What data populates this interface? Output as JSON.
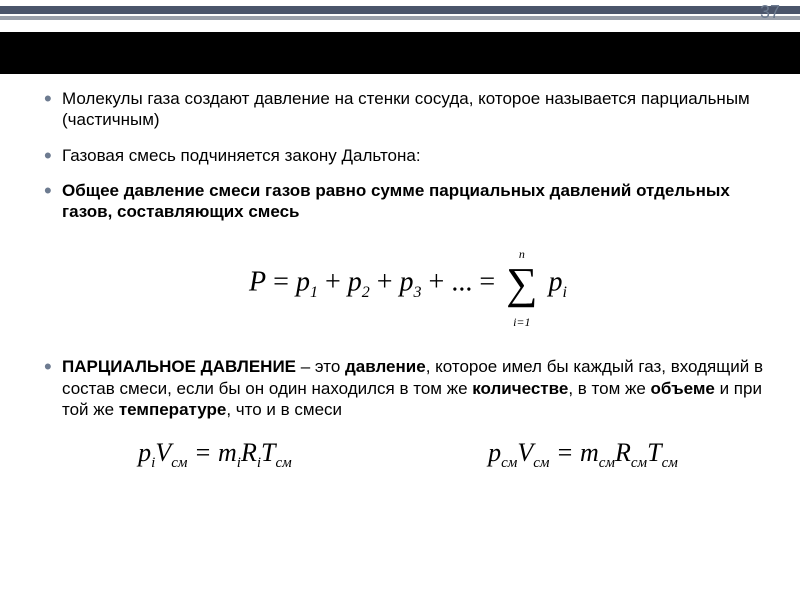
{
  "slide": {
    "number": "37",
    "topbar_color": "#4b556b",
    "topbar2_color": "#9aa0ab",
    "blackband_color": "#000000",
    "number_color": "#6d7b90"
  },
  "bullets": {
    "b1_a": "Молекулы газа создают давление на стенки сосуда, которое называется парциальным (частичным)",
    "b2_a": "Газовая смесь подчиняется закону Дальтона:",
    "b3_a": "Общее давление смеси газов равно сумме парциальных давлений отдельных газов, составляющих смесь",
    "b4_a": "ПАРЦИАЛЬНОЕ ДАВЛЕНИЕ",
    "b4_b": " – это ",
    "b4_c": "давление",
    "b4_d": ", которое имел бы каждый газ, входящий в состав смеси, если бы он один находился в том же ",
    "b4_e": "количестве",
    "b4_f": ", в том же ",
    "b4_g": "объеме",
    "b4_h": " и при той же ",
    "b4_i": "температуре",
    "b4_j": ", что и в смеси"
  },
  "formula1": {
    "P": "P",
    "eq": " = ",
    "p1": "p",
    "s1": "1",
    "plus": " + ",
    "p2": "p",
    "s2": "2",
    "p3": "p",
    "s3": "3",
    "dots": " + ... = ",
    "sum_top": "n",
    "sum_sym": "∑",
    "sum_bot": "i=1",
    "pi_p": "p",
    "pi_i": "i"
  },
  "formula2a": {
    "p": "p",
    "p_sub": "i",
    "V": "V",
    "V_sub": "см",
    "eq": " = ",
    "m": "m",
    "m_sub": "i",
    "R": "R",
    "R_sub": "i",
    "T": "T",
    "T_sub": "см"
  },
  "formula2b": {
    "p": "p",
    "p_sub": "см",
    "V": "V",
    "V_sub": "см",
    "eq": " = ",
    "m": "m",
    "m_sub": "см",
    "R": "R",
    "R_sub": "см",
    "T": "T",
    "T_sub": "см"
  }
}
